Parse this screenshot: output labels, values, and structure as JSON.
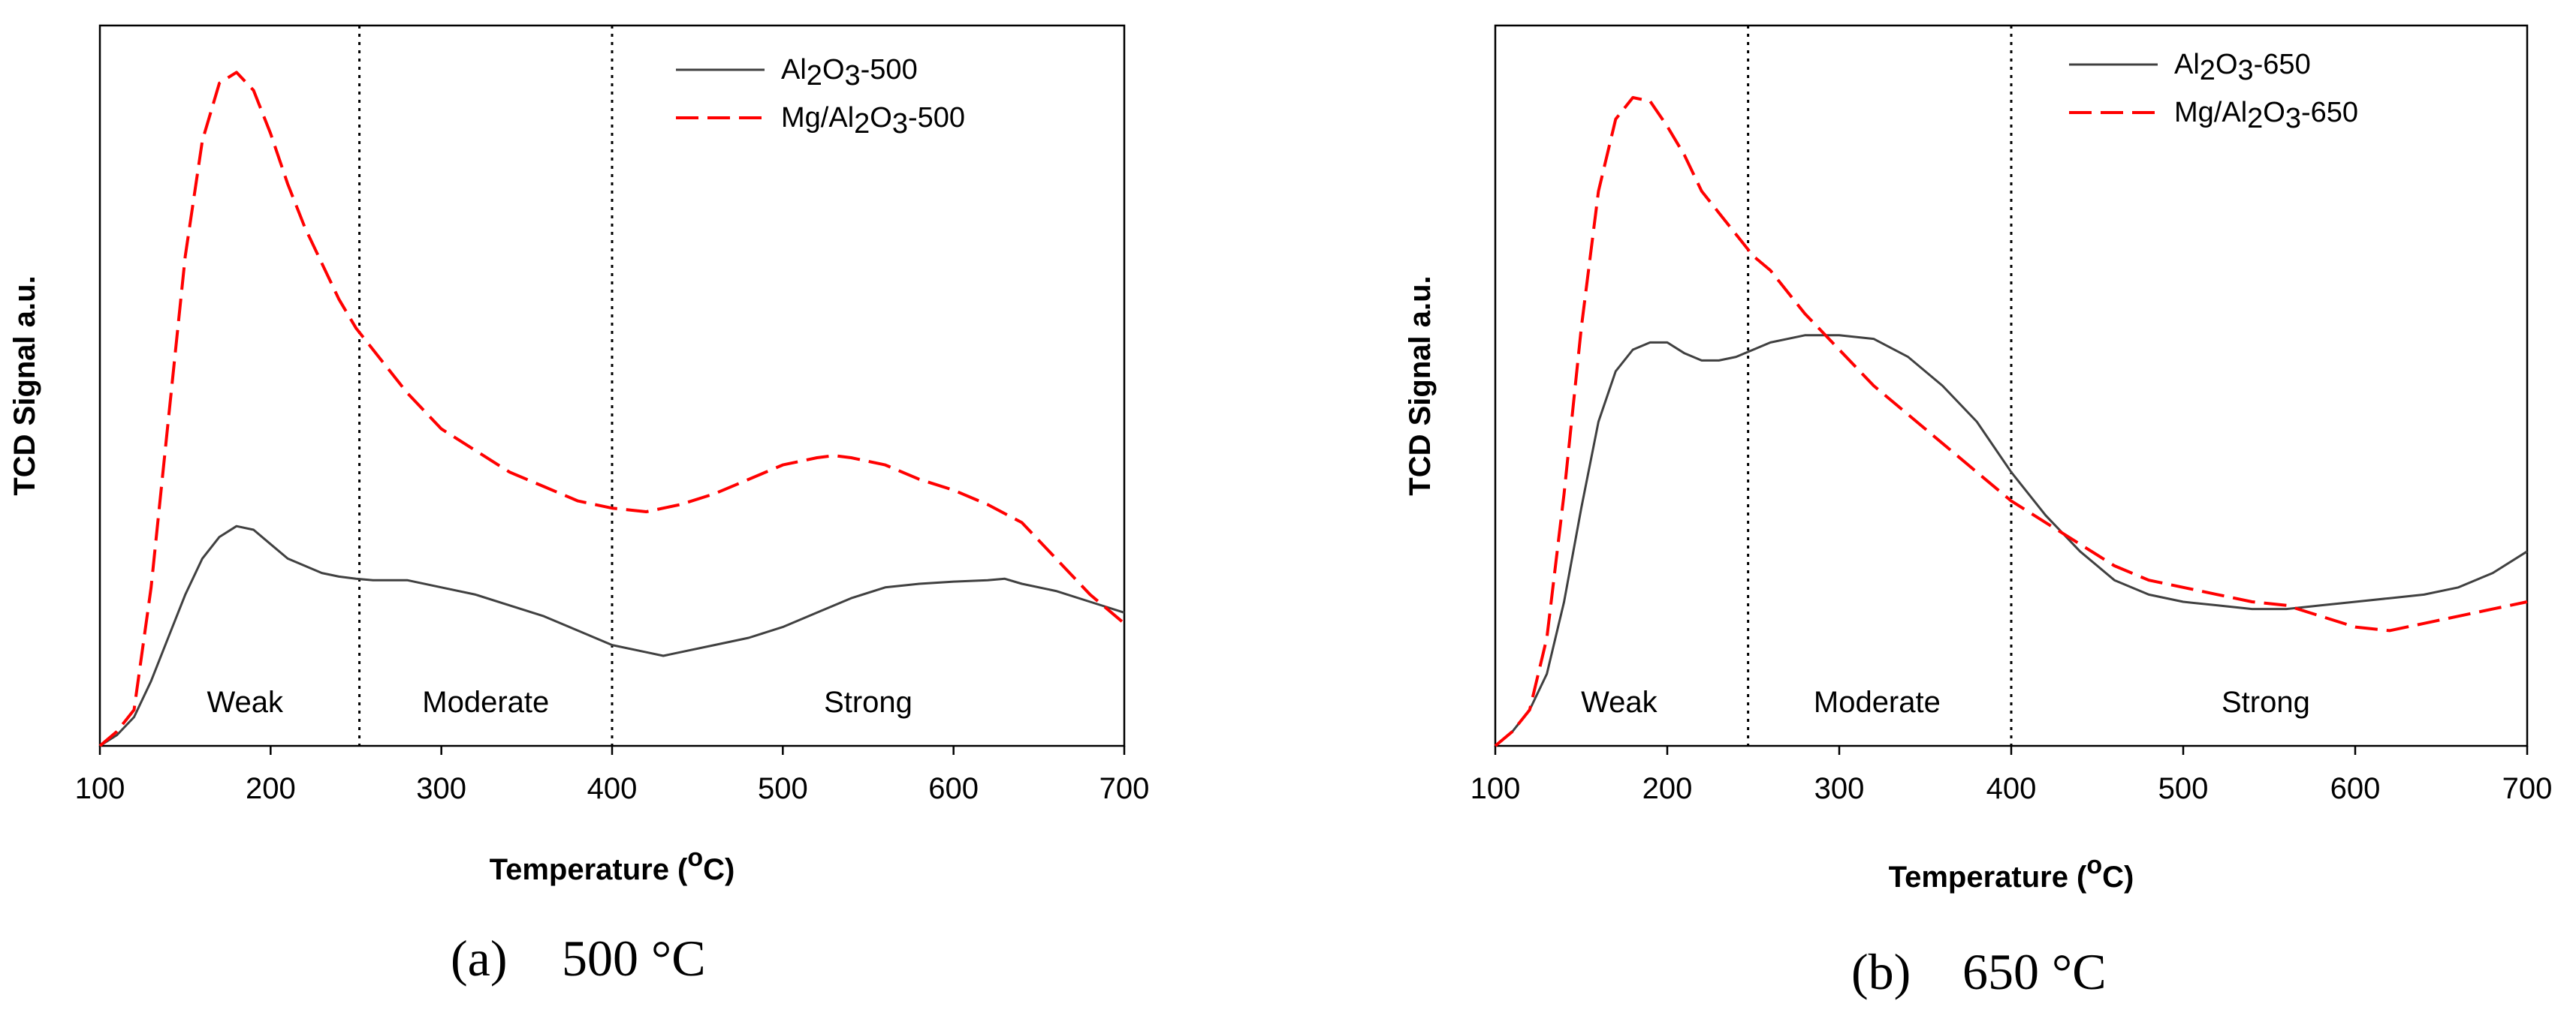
{
  "chart_data": [
    {
      "type": "line",
      "title": "",
      "caption_label": "(a)",
      "caption_temp": "500 °C",
      "xlabel_main": "Temperature (",
      "xlabel_sup": "o",
      "xlabel_end": "C)",
      "ylabel": "TCD Signal a.u.",
      "xlim": [
        100,
        700
      ],
      "ylim": [
        0,
        100
      ],
      "xticks": [
        "100",
        "200",
        "300",
        "400",
        "500",
        "600",
        "700"
      ],
      "dividers": [
        252,
        400
      ],
      "regions": [
        {
          "label": "Weak",
          "x": 185
        },
        {
          "label": "Moderate",
          "x": 326
        },
        {
          "label": "Strong",
          "x": 550
        }
      ],
      "legend": [
        {
          "sub_a": "Al",
          "sub_1": "2",
          "sub_b": "O",
          "sub_2": "3",
          "suffix": "-500"
        },
        {
          "pre": "Mg/",
          "sub_a": "Al",
          "sub_1": "2",
          "sub_b": "O",
          "sub_2": "3",
          "suffix": "-500"
        }
      ],
      "series": [
        {
          "name": "Al2O3-500",
          "color": "#404040",
          "dash": "none",
          "x": [
            100,
            110,
            120,
            130,
            140,
            150,
            160,
            170,
            180,
            190,
            200,
            210,
            220,
            230,
            240,
            250,
            260,
            280,
            300,
            320,
            340,
            360,
            380,
            400,
            420,
            430,
            440,
            460,
            480,
            500,
            520,
            540,
            560,
            580,
            600,
            620,
            630,
            640,
            660,
            680,
            700
          ],
          "y": [
            0,
            1.5,
            4,
            9,
            15,
            21,
            26,
            29,
            30.5,
            30,
            28,
            26,
            25,
            24,
            23.5,
            23.2,
            23,
            23,
            22,
            21,
            19.5,
            18,
            16,
            14,
            13,
            12.5,
            13,
            14,
            15,
            16.5,
            18.5,
            20.5,
            22,
            22.5,
            22.8,
            23,
            23.2,
            22.5,
            21.5,
            20,
            18.5
          ]
        },
        {
          "name": "Mg/Al2O3-500",
          "color": "#ff0000",
          "dash": "30,12",
          "x": [
            100,
            110,
            120,
            130,
            140,
            150,
            160,
            170,
            180,
            190,
            200,
            210,
            220,
            230,
            240,
            250,
            260,
            280,
            300,
            320,
            340,
            360,
            380,
            400,
            420,
            440,
            460,
            480,
            500,
            520,
            530,
            540,
            560,
            580,
            600,
            620,
            640,
            660,
            680,
            700
          ],
          "y": [
            0,
            2,
            5,
            22,
            45,
            68,
            84,
            92,
            93.5,
            91,
            85,
            78,
            72,
            67,
            62,
            58,
            55,
            49,
            44,
            41,
            38,
            36,
            34,
            33,
            32.5,
            33.5,
            35,
            37,
            39,
            40,
            40.3,
            40,
            39,
            37,
            35.5,
            33.5,
            31,
            26,
            21,
            17
          ]
        }
      ]
    },
    {
      "type": "line",
      "title": "",
      "caption_label": "(b)",
      "caption_temp": "650 °C",
      "xlabel_main": "Temperature (",
      "xlabel_sup": "o",
      "xlabel_end": "C)",
      "ylabel": "TCD Signal a.u.",
      "xlim": [
        100,
        700
      ],
      "ylim": [
        0,
        100
      ],
      "xticks": [
        "100",
        "200",
        "300",
        "400",
        "500",
        "600",
        "700"
      ],
      "dividers": [
        247,
        400
      ],
      "regions": [
        {
          "label": "Weak",
          "x": 172
        },
        {
          "label": "Moderate",
          "x": 322
        },
        {
          "label": "Strong",
          "x": 548
        }
      ],
      "legend": [
        {
          "sub_a": "Al",
          "sub_1": "2",
          "sub_b": "O",
          "sub_2": "3",
          "suffix": "-650"
        },
        {
          "pre": "Mg/",
          "sub_a": "Al",
          "sub_1": "2",
          "sub_b": "O",
          "sub_2": "3",
          "suffix": "-650"
        }
      ],
      "series": [
        {
          "name": "Al2O3-650",
          "color": "#404040",
          "dash": "none",
          "x": [
            100,
            110,
            120,
            130,
            140,
            150,
            160,
            170,
            180,
            190,
            200,
            210,
            220,
            230,
            240,
            250,
            260,
            280,
            300,
            320,
            340,
            360,
            380,
            400,
            420,
            440,
            460,
            480,
            500,
            520,
            540,
            560,
            580,
            600,
            620,
            640,
            660,
            680,
            700
          ],
          "y": [
            0,
            2,
            5,
            10,
            20,
            33,
            45,
            52,
            55,
            56,
            56,
            54.5,
            53.5,
            53.5,
            54,
            55,
            56,
            57,
            57,
            56.5,
            54,
            50,
            45,
            38,
            32,
            27,
            23,
            21,
            20,
            19.5,
            19,
            19,
            19.5,
            20,
            20.5,
            21,
            22,
            24,
            27
          ]
        },
        {
          "name": "Mg/Al2O3-650",
          "color": "#ff0000",
          "dash": "30,12",
          "x": [
            100,
            110,
            120,
            130,
            140,
            150,
            160,
            170,
            180,
            190,
            200,
            210,
            220,
            230,
            240,
            250,
            260,
            280,
            300,
            320,
            340,
            360,
            380,
            400,
            420,
            440,
            460,
            480,
            500,
            520,
            540,
            560,
            580,
            600,
            620,
            640,
            660,
            680,
            700
          ],
          "y": [
            0,
            2,
            5,
            15,
            35,
            58,
            77,
            87,
            90,
            89.5,
            86,
            82,
            77,
            74,
            71,
            68,
            66,
            60,
            55,
            50,
            46,
            42,
            38,
            34,
            31,
            28,
            25,
            23,
            22,
            21,
            20,
            19.5,
            18,
            16.5,
            16,
            17,
            18,
            19,
            20
          ]
        }
      ]
    }
  ]
}
